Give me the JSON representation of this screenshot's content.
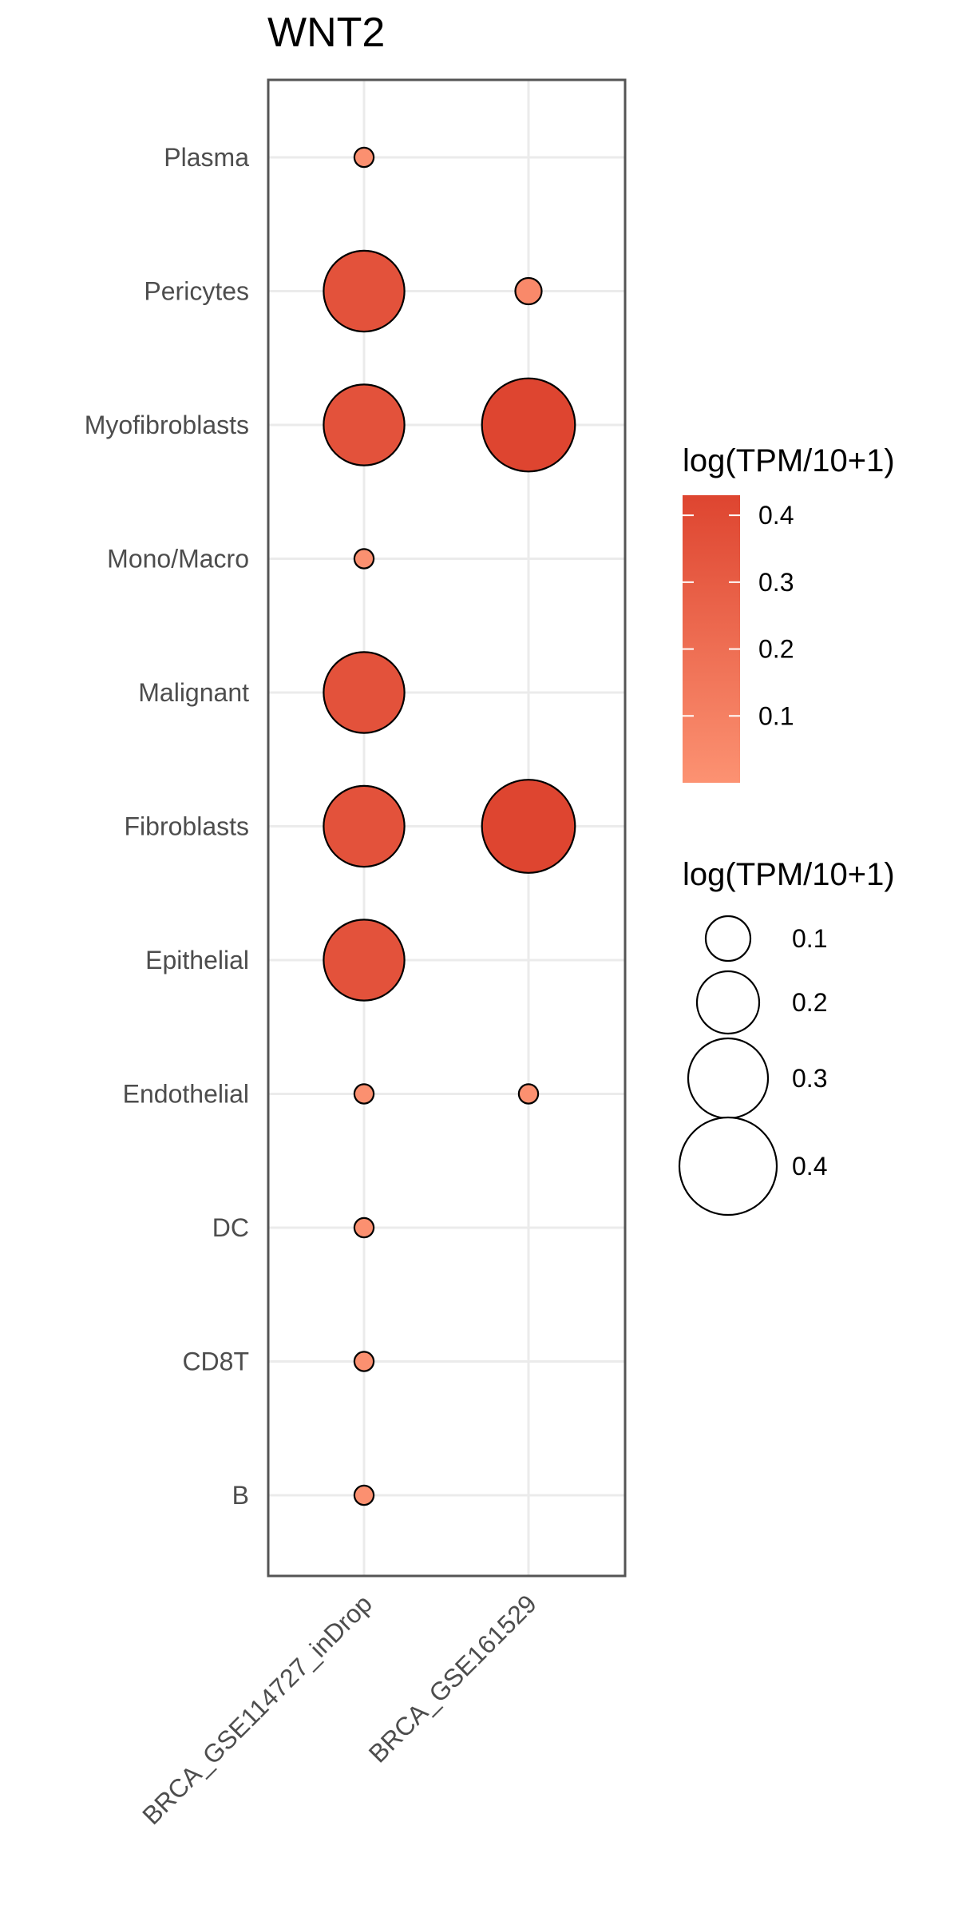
{
  "chart_data": {
    "type": "scatter",
    "title": "WNT2",
    "xlabel": "",
    "ylabel": "",
    "x_categories": [
      "BRCA_GSE114727_inDrop",
      "BRCA_GSE161529"
    ],
    "y_categories": [
      "Plasma",
      "Pericytes",
      "Myofibroblasts",
      "Mono/Macro",
      "Malignant",
      "Fibroblasts",
      "Epithelial",
      "Endothelial",
      "DC",
      "CD8T",
      "B"
    ],
    "points": [
      {
        "x": "BRCA_GSE114727_inDrop",
        "y": "Plasma",
        "value": 0.01
      },
      {
        "x": "BRCA_GSE114727_inDrop",
        "y": "Pericytes",
        "value": 0.36
      },
      {
        "x": "BRCA_GSE161529",
        "y": "Pericytes",
        "value": 0.05
      },
      {
        "x": "BRCA_GSE114727_inDrop",
        "y": "Myofibroblasts",
        "value": 0.36
      },
      {
        "x": "BRCA_GSE161529",
        "y": "Myofibroblasts",
        "value": 0.43
      },
      {
        "x": "BRCA_GSE114727_inDrop",
        "y": "Mono/Macro",
        "value": 0.01
      },
      {
        "x": "BRCA_GSE114727_inDrop",
        "y": "Malignant",
        "value": 0.36
      },
      {
        "x": "BRCA_GSE114727_inDrop",
        "y": "Fibroblasts",
        "value": 0.36
      },
      {
        "x": "BRCA_GSE161529",
        "y": "Fibroblasts",
        "value": 0.43
      },
      {
        "x": "BRCA_GSE114727_inDrop",
        "y": "Epithelial",
        "value": 0.36
      },
      {
        "x": "BRCA_GSE114727_inDrop",
        "y": "Endothelial",
        "value": 0.01
      },
      {
        "x": "BRCA_GSE161529",
        "y": "Endothelial",
        "value": 0.01
      },
      {
        "x": "BRCA_GSE114727_inDrop",
        "y": "DC",
        "value": 0.01
      },
      {
        "x": "BRCA_GSE114727_inDrop",
        "y": "CD8T",
        "value": 0.01
      },
      {
        "x": "BRCA_GSE114727_inDrop",
        "y": "B",
        "value": 0.01
      }
    ],
    "color_scale": {
      "min": 0.0,
      "max": 0.43,
      "low_color": "#fc9272",
      "high_color": "#de4530"
    },
    "color_legend": {
      "title": "log(TPM/10+1)",
      "ticks": [
        0.1,
        0.2,
        0.3,
        0.4
      ]
    },
    "size_legend": {
      "title": "log(TPM/10+1)",
      "values": [
        0.1,
        0.2,
        0.3,
        0.4
      ]
    },
    "grid": true,
    "legend_position": "right"
  }
}
